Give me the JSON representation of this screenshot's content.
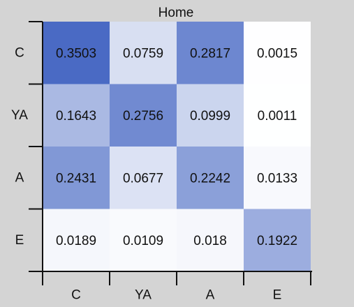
{
  "chart_data": {
    "type": "heatmap",
    "title": "Home",
    "xlabel": "",
    "ylabel": "",
    "x_categories": [
      "C",
      "YA",
      "A",
      "E"
    ],
    "y_categories": [
      "C",
      "YA",
      "A",
      "E"
    ],
    "values": [
      [
        0.3503,
        0.0759,
        0.2817,
        0.0015
      ],
      [
        0.1643,
        0.2756,
        0.0999,
        0.0011
      ],
      [
        0.2431,
        0.0677,
        0.2242,
        0.0133
      ],
      [
        0.0189,
        0.0109,
        0.018,
        0.1922
      ]
    ],
    "value_labels": [
      [
        "0.3503",
        "0.0759",
        "0.2817",
        "0.0015"
      ],
      [
        "0.1643",
        "0.2756",
        "0.0999",
        "0.0011"
      ],
      [
        "0.2431",
        "0.0677",
        "0.2242",
        "0.0133"
      ],
      [
        "0.0189",
        "0.0109",
        "0.018",
        "0.1922"
      ]
    ],
    "colormap": {
      "low": "#ffffff",
      "high": "#4a6ac4"
    },
    "background": "#d4d4d4"
  }
}
